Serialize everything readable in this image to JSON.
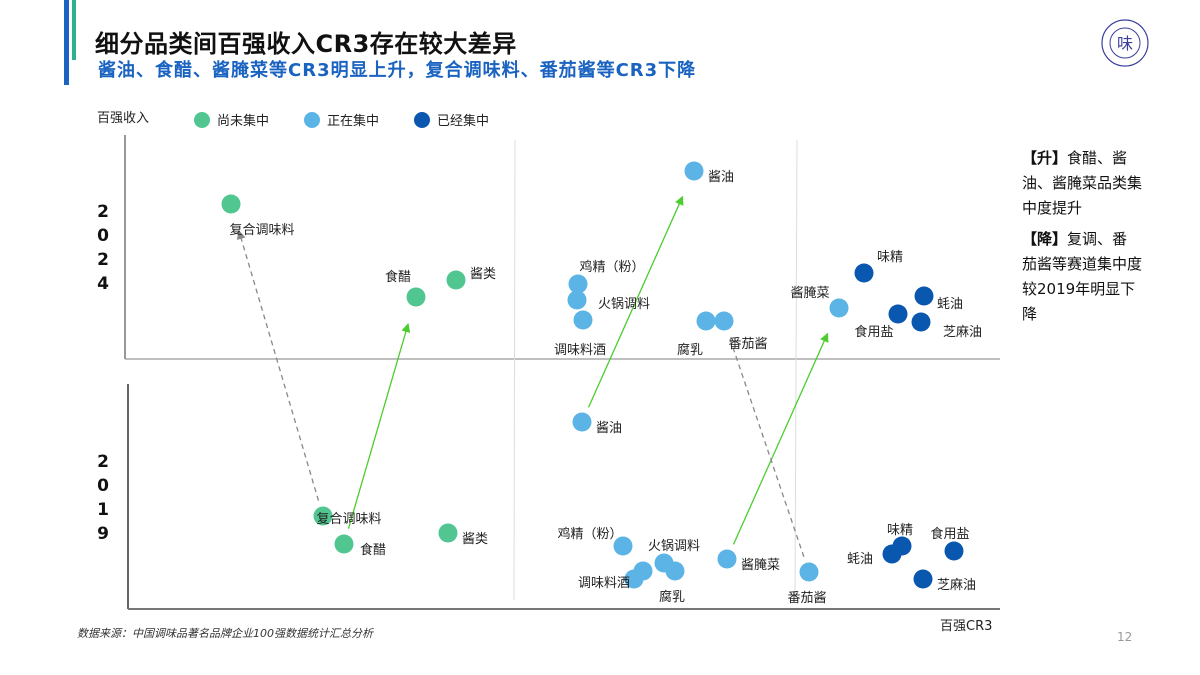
{
  "header": {
    "title": "细分品类间百强收入CR3存在较大差异",
    "subtitle": "酱油、食醋、酱腌菜等CR3明显上升，复合调味料、番茄酱等CR3下降",
    "logo_text": "味"
  },
  "colors": {
    "accent_blue": "#1a63c0",
    "accent_teal": "#2db38a",
    "not_concentrated": "#52c691",
    "concentrating": "#5bb4e5",
    "concentrated": "#0a57b0",
    "rise_arrow": "#4ccc2e",
    "fall_arrow": "#888888"
  },
  "chart_data": {
    "type": "scatter",
    "ylabel": "百强收入",
    "xlabel": "百强CR3",
    "legend": {
      "placement": "top-left",
      "items": [
        {
          "key": "not",
          "label": "尚未集中"
        },
        {
          "key": "ing",
          "label": "正在集中"
        },
        {
          "key": "done",
          "label": "已经集中"
        }
      ]
    },
    "panels": [
      {
        "year": "2024",
        "points": [
          {
            "name": "复合调味料",
            "group": "not"
          },
          {
            "name": "食醋",
            "group": "not"
          },
          {
            "name": "酱类",
            "group": "not"
          },
          {
            "name": "酱油",
            "group": "ing"
          },
          {
            "name": "鸡精（粉）",
            "group": "ing"
          },
          {
            "name": "火锅调料",
            "group": "ing"
          },
          {
            "name": "调味料酒",
            "group": "ing"
          },
          {
            "name": "腐乳",
            "group": "ing"
          },
          {
            "name": "番茄酱",
            "group": "ing"
          },
          {
            "name": "酱腌菜",
            "group": "ing"
          },
          {
            "name": "味精",
            "group": "done"
          },
          {
            "name": "蚝油",
            "group": "done"
          },
          {
            "name": "食用盐",
            "group": "done"
          },
          {
            "name": "芝麻油",
            "group": "done"
          }
        ]
      },
      {
        "year": "2019",
        "points": [
          {
            "name": "复合调味料",
            "group": "not"
          },
          {
            "name": "食醋",
            "group": "not"
          },
          {
            "name": "酱类",
            "group": "not"
          },
          {
            "name": "酱油",
            "group": "ing"
          },
          {
            "name": "鸡精（粉）",
            "group": "ing"
          },
          {
            "name": "火锅调料",
            "group": "ing"
          },
          {
            "name": "调味料酒",
            "group": "ing"
          },
          {
            "name": "",
            "group": "ing"
          },
          {
            "name": "腐乳",
            "group": "ing"
          },
          {
            "name": "酱腌菜",
            "group": "ing"
          },
          {
            "name": "番茄酱",
            "group": "ing"
          },
          {
            "name": "味精",
            "group": "done"
          },
          {
            "name": "蚝油",
            "group": "done"
          },
          {
            "name": "食用盐",
            "group": "done"
          },
          {
            "name": "芝麻油",
            "group": "done"
          }
        ]
      }
    ],
    "arrows": [
      {
        "from": "2019",
        "to": "2024",
        "name": "食醋",
        "trend": "rise"
      },
      {
        "from": "2019",
        "to": "2024",
        "name": "酱油",
        "trend": "rise"
      },
      {
        "from": "2019",
        "to": "2024",
        "name": "酱腌菜",
        "trend": "rise"
      },
      {
        "from": "2019",
        "to": "2024",
        "name": "复合调味料",
        "trend": "fall"
      },
      {
        "from": "2019",
        "to": "2024",
        "name": "番茄酱",
        "trend": "fall"
      }
    ]
  },
  "notes": {
    "rise_tag": "【升】",
    "rise_text": "食醋、酱油、酱腌菜品类集中度提升",
    "fall_tag": "【降】",
    "fall_text": "复调、番茄酱等赛道集中度较2019年明显下降"
  },
  "footer": {
    "source": "数据来源：中国调味品著名品牌企业100强数据统计汇总分析",
    "page_number": "12"
  }
}
